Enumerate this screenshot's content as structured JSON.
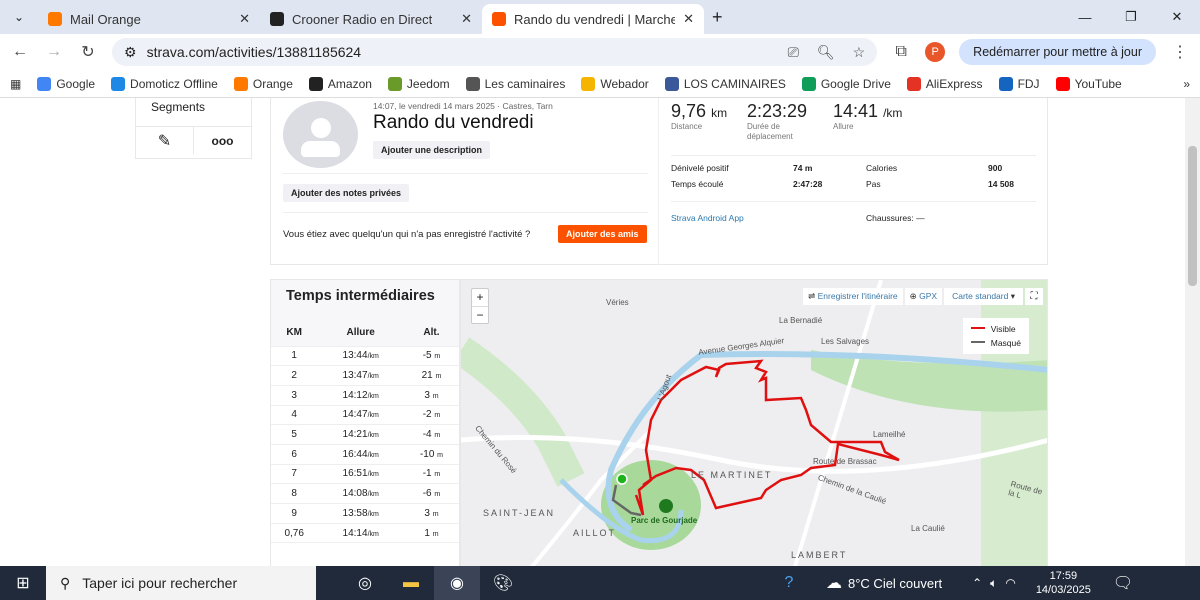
{
  "browser": {
    "tabs": [
      {
        "label": "Mail Orange",
        "fav": "#ff7900"
      },
      {
        "label": "Crooner Radio en Direct",
        "fav": "#222"
      },
      {
        "label": "Rando du vendredi | Marche | S",
        "fav": "#fc5200",
        "active": true
      }
    ],
    "url": "strava.com/activities/13881185624",
    "restart_label": "Redémarrer pour mettre à jour",
    "profile_initial": "P",
    "bookmarks": [
      {
        "label": "Google",
        "c": "#4285f4"
      },
      {
        "label": "Domoticz Offline",
        "c": "#1e88e5"
      },
      {
        "label": "Orange",
        "c": "#ff7900"
      },
      {
        "label": "Amazon",
        "c": "#222"
      },
      {
        "label": "Jeedom",
        "c": "#6a9a2a"
      },
      {
        "label": "Les caminaires",
        "c": "#555"
      },
      {
        "label": "Webador",
        "c": "#f4b400"
      },
      {
        "label": "LOS CAMINAIRES",
        "c": "#3b5998"
      },
      {
        "label": "Google Drive",
        "c": "#0f9d58"
      },
      {
        "label": "AliExpress",
        "c": "#e43225"
      },
      {
        "label": "FDJ",
        "c": "#1565c0"
      },
      {
        "label": "YouTube",
        "c": "#ff0000"
      }
    ]
  },
  "sidebar": {
    "segments_label": "Segments"
  },
  "activity": {
    "meta": "14:07, le vendredi 14 mars 2025 · Castres, Tarn",
    "title": "Rando du vendredi",
    "add_description": "Ajouter une description",
    "add_private_notes": "Ajouter des notes privées",
    "friends_prompt": "Vous étiez avec quelqu'un qui n'a pas enregistré l'activité ?",
    "add_friends": "Ajouter des amis"
  },
  "stats": {
    "primary": [
      {
        "value": "9,76",
        "unit": "km",
        "label": "Distance"
      },
      {
        "value": "2:23:29",
        "unit": "",
        "label": "Durée de déplacement"
      },
      {
        "value": "14:41",
        "unit": "/km",
        "label": "Allure"
      }
    ],
    "secondary": [
      {
        "label": "Dénivelé positif",
        "value": "74 m",
        "label2": "Calories",
        "value2": "900"
      },
      {
        "label": "Temps écoulé",
        "value": "2:47:28",
        "label2": "Pas",
        "value2": "14 508"
      }
    ],
    "device": "Strava Android App",
    "shoes": "Chaussures: —"
  },
  "splits": {
    "title": "Temps intermédiaires",
    "headers": [
      "KM",
      "Allure",
      "Alt."
    ],
    "unit_pace": "/km",
    "unit_alt": "m",
    "rows": [
      [
        "1",
        "13:44",
        "-5"
      ],
      [
        "2",
        "13:47",
        "21"
      ],
      [
        "3",
        "14:12",
        "3"
      ],
      [
        "4",
        "14:47",
        "-2"
      ],
      [
        "5",
        "14:21",
        "-4"
      ],
      [
        "6",
        "16:44",
        "-10"
      ],
      [
        "7",
        "16:51",
        "-1"
      ],
      [
        "8",
        "14:08",
        "-6"
      ],
      [
        "9",
        "13:58",
        "3"
      ],
      [
        "0,76",
        "14:14",
        "1"
      ]
    ]
  },
  "map": {
    "save_route": "Enregistrer l'itinéraire",
    "gpx": "GPX",
    "map_type": "Carte standard",
    "legend": [
      {
        "label": "Visible",
        "color": "#e01010"
      },
      {
        "label": "Masqué",
        "color": "#666666"
      }
    ],
    "labels": [
      "Véries",
      "La Bernadié",
      "Les Salvages",
      "Avenue Georges Alquier",
      "Lameilhé",
      "Route de Brassac",
      "LE MARTINET",
      "Chemin de la Caulié",
      "Route de la L",
      "Chemin du Rosé",
      "SAINT-JEAN",
      "Parc de Gourjade",
      "AILLOT",
      "LAMBERT",
      "La Caulié",
      "L'Agout"
    ]
  },
  "taskbar": {
    "search_placeholder": "Taper ici pour rechercher",
    "weather": "8°C  Ciel couvert",
    "time": "17:59",
    "date": "14/03/2025"
  }
}
